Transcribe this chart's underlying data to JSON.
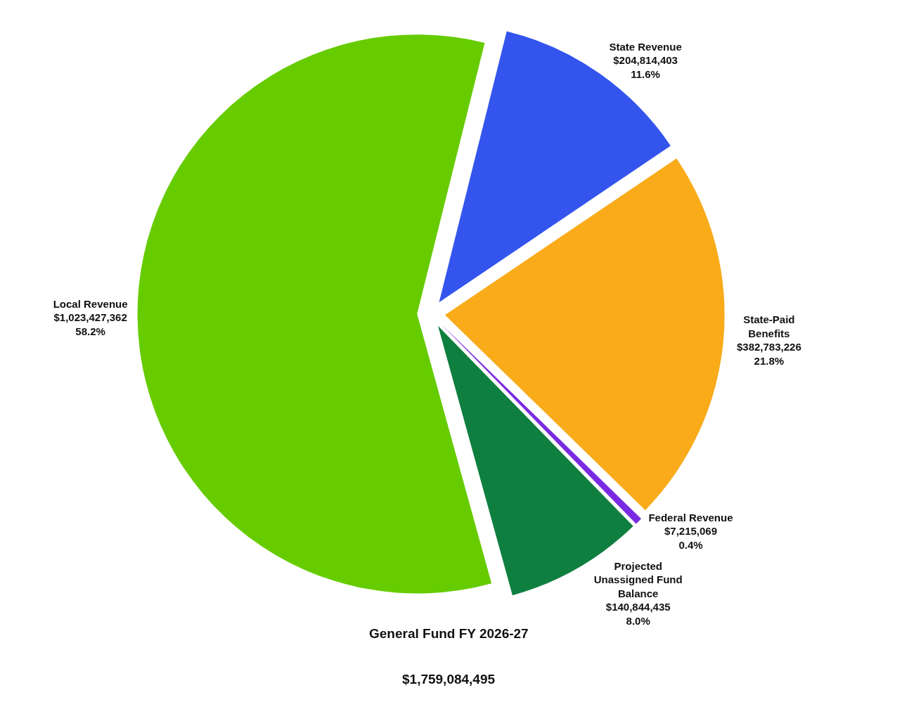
{
  "chart_data": {
    "type": "pie",
    "title": "General Fund FY 2026-27",
    "subtitle": "$1,759,084,495",
    "categories": [
      "State Revenue",
      "State-Paid Benefits",
      "Federal Revenue",
      "Projected Unassigned Fund Balance",
      "Local Revenue"
    ],
    "values": [
      204814403,
      382783226,
      7215069,
      140844435,
      1023427362
    ],
    "value_labels": [
      "$204,814,403\n11.6%",
      "$382,783,226\n21.8%",
      "$7,215,069\n0.4%",
      "$140,844,435\n8.0%",
      "$1,023,427,362\n58.2%"
    ],
    "colors": [
      "#3355ee",
      "#f9ab1a",
      "#7a2be2",
      "#0f7f3f",
      "#66cc00"
    ],
    "legend": false
  }
}
